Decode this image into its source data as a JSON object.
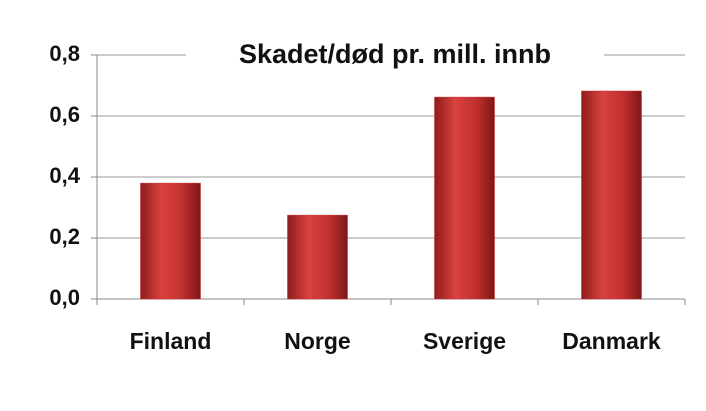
{
  "chart_data": {
    "type": "bar",
    "title": "Skadet/død pr. mill. innb",
    "categories": [
      "Finland",
      "Norge",
      "Sverige",
      "Danmark"
    ],
    "values": [
      0.38,
      0.275,
      0.662,
      0.682
    ],
    "color": "#c0302f",
    "ylim": [
      0,
      0.8
    ],
    "yticks": [
      {
        "value": 0,
        "label": "0,0"
      },
      {
        "value": 0.2,
        "label": "0,2"
      },
      {
        "value": 0.4,
        "label": "0,4"
      },
      {
        "value": 0.6,
        "label": "0,6"
      },
      {
        "value": 0.8,
        "label": "0,8"
      }
    ],
    "grid": true
  }
}
